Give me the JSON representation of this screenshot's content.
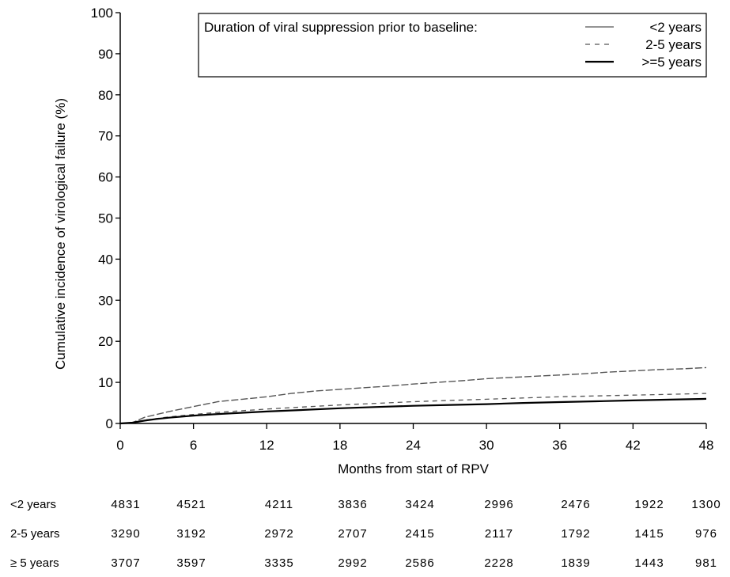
{
  "chart_data": {
    "type": "line",
    "xlabel": "Months from start of RPV",
    "ylabel": "Cumulative incidence of virological failure (%)",
    "xlim": [
      0,
      48
    ],
    "ylim": [
      0,
      100
    ],
    "x_ticks": [
      0,
      6,
      12,
      18,
      24,
      30,
      36,
      42,
      48
    ],
    "y_ticks": [
      0,
      10,
      20,
      30,
      40,
      50,
      60,
      70,
      80,
      90,
      100
    ],
    "grid": false,
    "legend": {
      "title": "Duration of viral suppression prior to baseline:",
      "placement": "top-right"
    },
    "series": [
      {
        "name": "<2 years",
        "style": "thin-dashed-long",
        "color": "#555555",
        "x": [
          0,
          1,
          2,
          3,
          4,
          5,
          6,
          7,
          8,
          9,
          10,
          12,
          14,
          16,
          18,
          20,
          22,
          24,
          26,
          28,
          30,
          32,
          34,
          36,
          38,
          40,
          42,
          44,
          46,
          48
        ],
        "y": [
          0,
          0.2,
          1.5,
          2.2,
          2.9,
          3.5,
          4.1,
          4.7,
          5.3,
          5.6,
          5.9,
          6.5,
          7.3,
          7.9,
          8.3,
          8.7,
          9.1,
          9.6,
          10.0,
          10.4,
          10.9,
          11.2,
          11.5,
          11.8,
          12.1,
          12.5,
          12.8,
          13.1,
          13.3,
          13.6
        ]
      },
      {
        "name": "2-5 years",
        "style": "dashed",
        "color": "#555555",
        "x": [
          0,
          1,
          2,
          3,
          4,
          6,
          8,
          10,
          12,
          15,
          18,
          21,
          24,
          27,
          30,
          33,
          36,
          39,
          42,
          45,
          48
        ],
        "y": [
          0,
          0.2,
          0.8,
          1.2,
          1.6,
          2.2,
          2.7,
          3.1,
          3.5,
          4.0,
          4.5,
          4.9,
          5.3,
          5.6,
          5.9,
          6.2,
          6.5,
          6.7,
          6.9,
          7.1,
          7.3
        ]
      },
      {
        "name": ">=5 years",
        "style": "solid-thick",
        "color": "#000000",
        "x": [
          0,
          1,
          2,
          3,
          4,
          6,
          8,
          10,
          12,
          15,
          18,
          21,
          24,
          27,
          30,
          33,
          36,
          39,
          42,
          45,
          48
        ],
        "y": [
          0,
          0.2,
          0.7,
          1.1,
          1.4,
          1.9,
          2.3,
          2.6,
          2.9,
          3.3,
          3.7,
          4.0,
          4.3,
          4.5,
          4.7,
          5.0,
          5.2,
          5.4,
          5.6,
          5.8,
          6.0
        ]
      }
    ],
    "risk_table": {
      "rows": [
        {
          "label": "<2 years",
          "values": [
            "4831",
            "4521",
            "4211",
            "3836",
            "3424",
            "2996",
            "2476",
            "1922",
            "1300"
          ]
        },
        {
          "label": "2-5 years",
          "values": [
            "3290",
            "3192",
            "2972",
            "2707",
            "2415",
            "2117",
            "1792",
            "1415",
            "976"
          ]
        },
        {
          "label": "≥ 5 years",
          "values": [
            "3707",
            "3597",
            "3335",
            "2992",
            "2586",
            "2228",
            "1839",
            "1443",
            "981"
          ]
        }
      ]
    }
  }
}
